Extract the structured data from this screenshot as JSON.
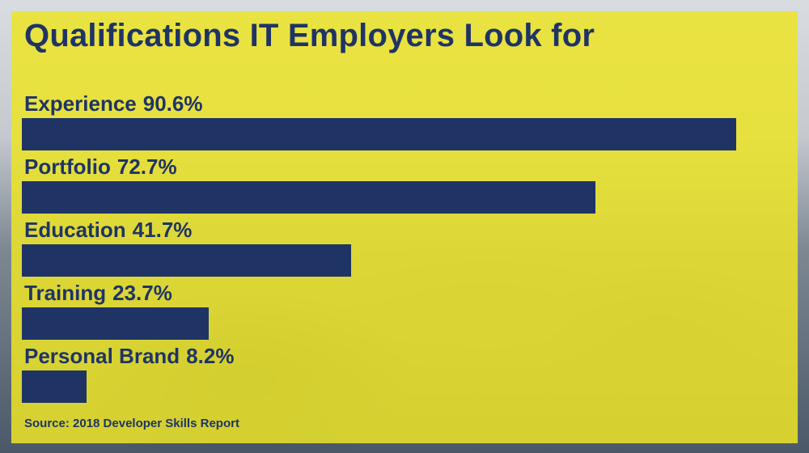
{
  "chart_data": {
    "type": "bar",
    "orientation": "horizontal",
    "title": "Qualifications IT Employers Look for",
    "categories": [
      "Experience",
      "Portfolio",
      "Education",
      "Training",
      "Personal Brand"
    ],
    "values": [
      90.6,
      72.7,
      41.7,
      23.7,
      8.2
    ],
    "value_labels": [
      "90.6%",
      "72.7%",
      "41.7%",
      "23.7%",
      "8.2%"
    ],
    "unit": "%",
    "xlim": [
      0,
      100
    ],
    "grid": false,
    "legend": "none",
    "source": "Source: 2018 Developer Skills Report"
  },
  "colors": {
    "bar": "#1f3465",
    "text": "#1f3465",
    "panel_overlay": "#ece428"
  }
}
